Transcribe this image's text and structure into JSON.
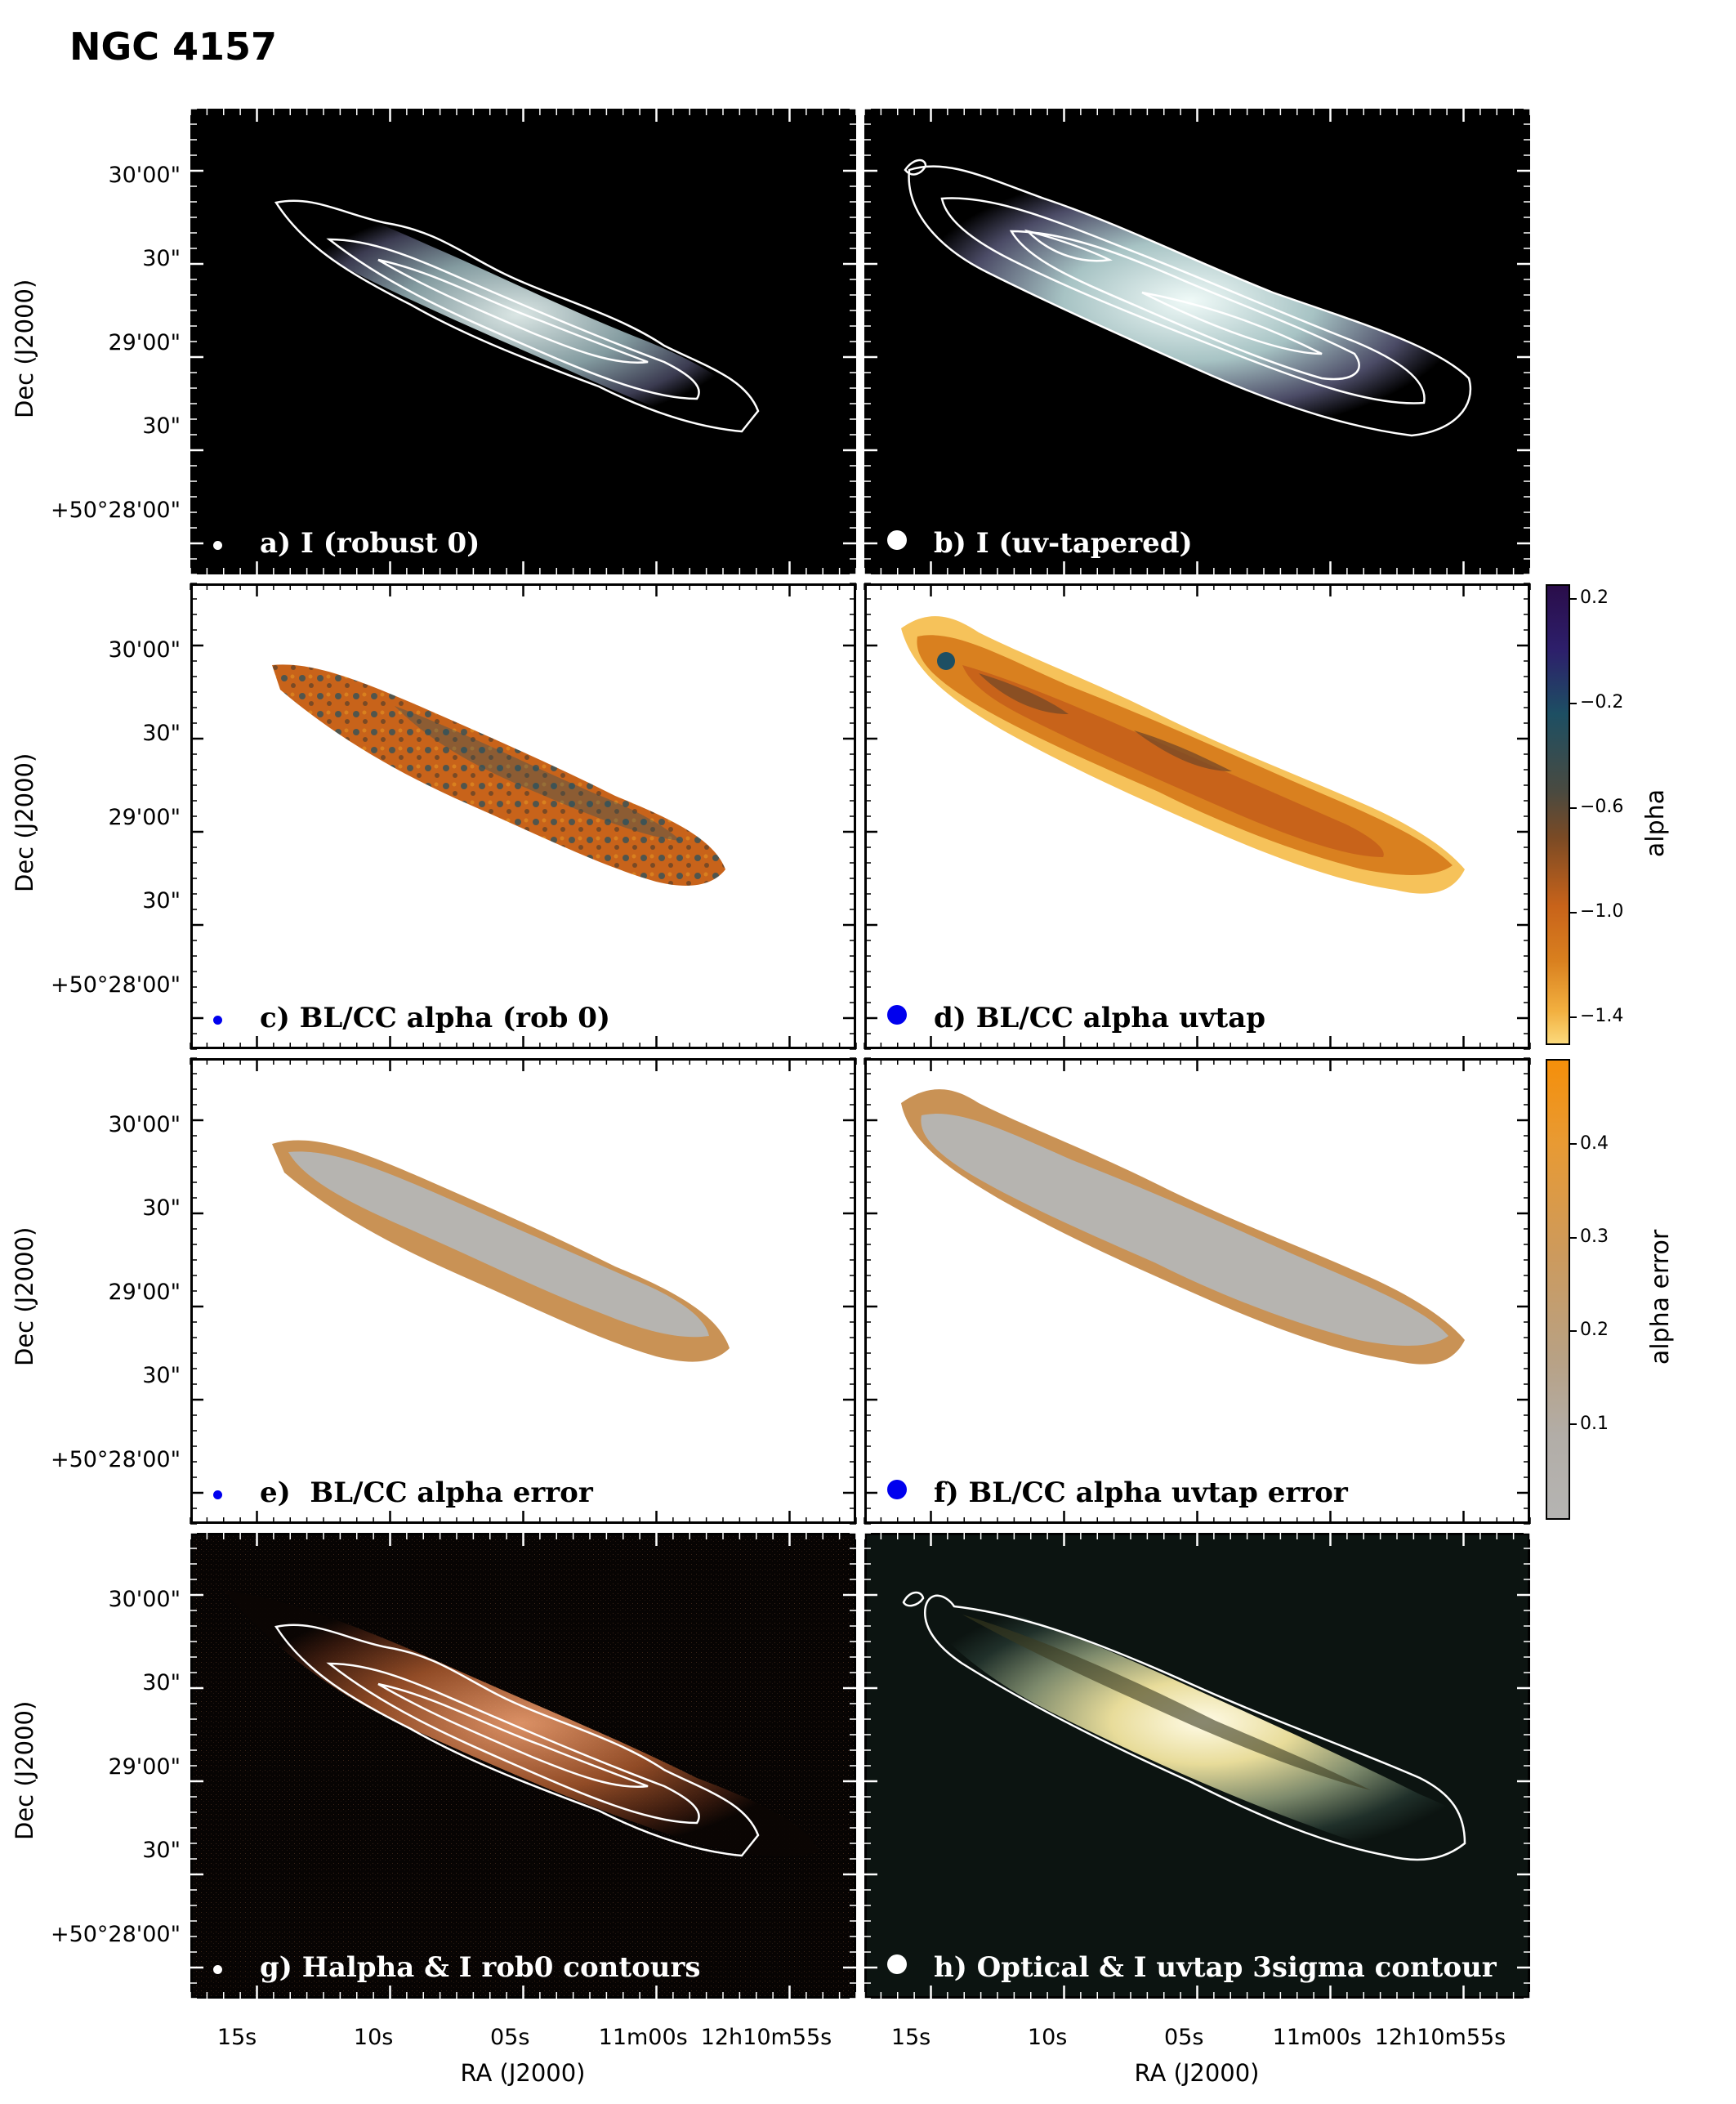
{
  "figure": {
    "title": "NGC 4157"
  },
  "axes": {
    "ylabel": "Dec (J2000)",
    "xlabel": "RA (J2000)",
    "y_ticks": [
      "30'00\"",
      "30\"",
      "29'00\"",
      "30\"",
      "+50°28'00\""
    ],
    "x_ticks": [
      "15s",
      "10s",
      "05s",
      "11m00s",
      "12h10m55s"
    ]
  },
  "panels": [
    {
      "id": "a",
      "title": "a) I (robust 0)",
      "map": "radio-robust",
      "contours": "dense"
    },
    {
      "id": "b",
      "title": "b) I (uv-tapered)",
      "map": "radio-tapered",
      "contours": "smooth"
    },
    {
      "id": "c",
      "title": "c) BL/CC alpha (rob 0)",
      "map": "alpha-robust"
    },
    {
      "id": "d",
      "title": "d) BL/CC alpha uvtap",
      "map": "alpha-tapered"
    },
    {
      "id": "e",
      "title": "e)  BL/CC alpha error",
      "map": "error-robust"
    },
    {
      "id": "f",
      "title": "f) BL/CC alpha uvtap error",
      "map": "error-tapered"
    },
    {
      "id": "g",
      "title": "g) Halpha & I rob0 contours",
      "map": "halpha",
      "contours": "dense"
    },
    {
      "id": "h",
      "title": "h) Optical & I uvtap 3sigma contour",
      "map": "optical",
      "contours": "outer"
    }
  ],
  "colorbars": {
    "alpha": {
      "label": "alpha",
      "ticks": [
        "0.2",
        "−0.2",
        "−0.6",
        "−1.0",
        "−1.4"
      ],
      "tick_values": [
        0.2,
        -0.2,
        -0.6,
        -1.0,
        -1.4
      ],
      "range": [
        0.25,
        -1.5
      ]
    },
    "alpha_error": {
      "label": "alpha error",
      "ticks": [
        "0.4",
        "0.3",
        "0.2",
        "0.1"
      ],
      "tick_values": [
        0.4,
        0.3,
        0.2,
        0.1
      ],
      "range": [
        0.49,
        0.0
      ]
    }
  },
  "colors": {
    "radio_bg": "#000000",
    "alpha_orange": "#c8631a",
    "alpha_blue": "#1d4f63",
    "error_gray": "#b6b4b0",
    "error_edge": "#c99255",
    "beam_blue": "#0000ee",
    "contour": "#ffffff"
  }
}
